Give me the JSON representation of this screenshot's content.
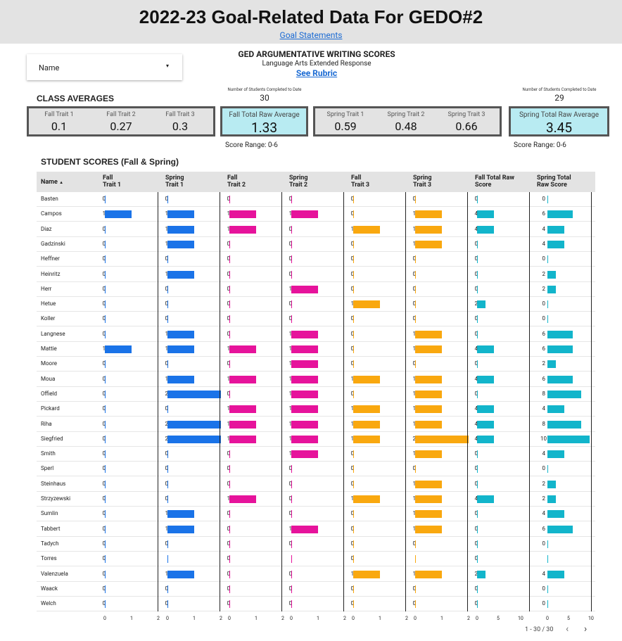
{
  "header": {
    "title": "2022-23 Goal-Related Data For GEDO#2",
    "link": "Goal Statements"
  },
  "name_filter": {
    "label": "Name",
    "caret": "▾"
  },
  "titleblock": {
    "title": "GED ARGUMENTATIVE WRITING SCORES",
    "subtitle": "Language Arts Extended Response",
    "rubric_link": "See Rubric"
  },
  "fall_completed": {
    "label": "Number of Students Completed to Date",
    "value": "30"
  },
  "spring_completed": {
    "label": "Number of Students Completed to Date",
    "value": "29"
  },
  "class_averages_title": "CLASS AVERAGES",
  "fall_traits": [
    {
      "label": "Fall Trait 1",
      "value": "0.1"
    },
    {
      "label": "Fall Trait 2",
      "value": "0.27"
    },
    {
      "label": "Fall Trait 3",
      "value": "0.3"
    }
  ],
  "fall_total": {
    "label": "Fall Total Raw Average",
    "value": "1.33"
  },
  "spring_traits": [
    {
      "label": "Spring Trait 1",
      "value": "0.59"
    },
    {
      "label": "Spring Trait 2",
      "value": "0.48"
    },
    {
      "label": "Spring Trait 3",
      "value": "0.66"
    }
  ],
  "spring_total": {
    "label": "Spring Total Raw Average",
    "value": "3.45"
  },
  "score_range_fall": "Score Range: 0-6",
  "score_range_spring": "Score Range: 0-6",
  "student_scores_title": "STUDENT SCORES (Fall & Spring)",
  "table": {
    "columns": [
      {
        "l1": "Name",
        "l2": "",
        "sort": "▲"
      },
      {
        "l1": "Fall",
        "l2": "Trait 1"
      },
      {
        "l1": "Spring",
        "l2": "Trait 1"
      },
      {
        "l1": "Fall",
        "l2": "Trait 2"
      },
      {
        "l1": "Spring",
        "l2": "Trait 2"
      },
      {
        "l1": "Fall",
        "l2": "Trait 3"
      },
      {
        "l1": "Spring",
        "l2": "Trait 3"
      },
      {
        "l1": "Fall Total Raw",
        "l2": "Score"
      },
      {
        "l1": "Spring Total",
        "l2": "Raw Score"
      }
    ],
    "colors": [
      "#1a73e8",
      "#1a73e8",
      "#e6139b",
      "#e6139b",
      "#f9a80f",
      "#f9a80f",
      "#12b5cb",
      "#12b5cb"
    ],
    "axis_max": [
      2,
      2,
      2,
      2,
      2,
      2,
      10,
      10
    ],
    "axis_ticks": [
      [
        "0",
        "1",
        "2"
      ],
      [
        "0",
        "1",
        "2"
      ],
      [
        "0",
        "1",
        "2"
      ],
      [
        "0",
        "1",
        "2"
      ],
      [
        "0",
        "1",
        "2"
      ],
      [
        "0",
        "1",
        "2"
      ],
      [
        "0",
        "5",
        "10"
      ],
      [
        "0",
        "5",
        "10"
      ]
    ],
    "rows": [
      {
        "name": "Basten",
        "s": [
          "0",
          "0",
          "0",
          "0",
          "0",
          "0",
          "0",
          "0"
        ]
      },
      {
        "name": "Campos",
        "s": [
          "1",
          "1",
          "1",
          "1",
          "0",
          "1",
          "4",
          "6"
        ]
      },
      {
        "name": "Diaz",
        "s": [
          "0",
          "1",
          "1",
          "0",
          "1",
          "1",
          "4",
          "4"
        ]
      },
      {
        "name": "Gadzinski",
        "s": [
          "0",
          "1",
          "0",
          "0",
          "0",
          "1",
          "0",
          "4"
        ]
      },
      {
        "name": "Heffner",
        "s": [
          "0",
          "0",
          "0",
          "0",
          "0",
          "0",
          "0",
          "0"
        ]
      },
      {
        "name": "Heinritz",
        "s": [
          "0",
          "1",
          "0",
          "0",
          "0",
          "0",
          "0",
          "2"
        ]
      },
      {
        "name": "Herr",
        "s": [
          "0",
          "0",
          "0",
          "1",
          "0",
          "0",
          "0",
          "2"
        ]
      },
      {
        "name": "Hetue",
        "s": [
          "0",
          "0",
          "0",
          "0",
          "1",
          "0",
          "2",
          "0"
        ]
      },
      {
        "name": "Koller",
        "s": [
          "0",
          "0",
          "0",
          "0",
          "0",
          "0",
          "0",
          "0"
        ]
      },
      {
        "name": "Langnese",
        "s": [
          "0",
          "1",
          "0",
          "1",
          "0",
          "1",
          "0",
          "6"
        ]
      },
      {
        "name": "Mattie",
        "s": [
          "1",
          "1",
          "1",
          "1",
          "0",
          "1",
          "4",
          "6"
        ]
      },
      {
        "name": "Moore",
        "s": [
          "0",
          "0",
          "0",
          "1",
          "0",
          "0",
          "0",
          "2"
        ]
      },
      {
        "name": "Moua",
        "s": [
          "0",
          "1",
          "1",
          "1",
          "1",
          "1",
          "4",
          "6"
        ]
      },
      {
        "name": "Offield",
        "s": [
          "0",
          "2",
          "0",
          "1",
          "0",
          "1",
          "0",
          "8"
        ]
      },
      {
        "name": "Pickard",
        "s": [
          "0",
          "0",
          "1",
          "1",
          "1",
          "1",
          "4",
          "4"
        ]
      },
      {
        "name": "Riha",
        "s": [
          "0",
          "2",
          "1",
          "1",
          "1",
          "1",
          "4",
          "8"
        ]
      },
      {
        "name": "Siegfried",
        "s": [
          "0",
          "2",
          "1",
          "1",
          "1",
          "2",
          "4",
          "10"
        ]
      },
      {
        "name": "Smith",
        "s": [
          "0",
          "0",
          "0",
          "1",
          "0",
          "1",
          "0",
          "4"
        ]
      },
      {
        "name": "Sperl",
        "s": [
          "0",
          "0",
          "0",
          "0",
          "0",
          "0",
          "0",
          "0"
        ]
      },
      {
        "name": "Steinhaus",
        "s": [
          "0",
          "0",
          "0",
          "0",
          "0",
          "1",
          "0",
          "2"
        ]
      },
      {
        "name": "Strzyzewski",
        "s": [
          "0",
          "0",
          "1",
          "0",
          "1",
          "1",
          "4",
          "2"
        ]
      },
      {
        "name": "Sumlin",
        "s": [
          "0",
          "1",
          "0",
          "0",
          "0",
          "1",
          "0",
          "4"
        ]
      },
      {
        "name": "Tabbert",
        "s": [
          "0",
          "1",
          "0",
          "1",
          "0",
          "1",
          "0",
          "6"
        ]
      },
      {
        "name": "Tadych",
        "s": [
          "0",
          "0",
          "0",
          "0",
          "0",
          "0",
          "0",
          "0"
        ]
      },
      {
        "name": "Torres",
        "s": [
          "0",
          "",
          "0",
          "",
          "0",
          "",
          "0",
          ""
        ]
      },
      {
        "name": "Valenzuela",
        "s": [
          "0",
          "1",
          "0",
          "0",
          "1",
          "1",
          "2",
          "4"
        ]
      },
      {
        "name": "Waack",
        "s": [
          "0",
          "0",
          "0",
          "0",
          "0",
          "0",
          "0",
          "0"
        ]
      },
      {
        "name": "Welch",
        "s": [
          "0",
          "0",
          "0",
          "0",
          "0",
          "0",
          "0",
          "0"
        ]
      }
    ]
  },
  "pagination": {
    "range": "1 - 30 / 30",
    "prev": "‹",
    "next": "›"
  }
}
